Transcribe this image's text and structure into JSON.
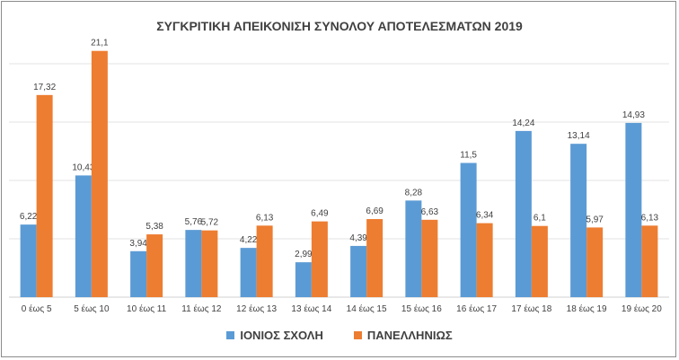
{
  "chart_data": {
    "type": "bar",
    "title": "ΣΥΓΚΡΙΤΙΚΗ ΑΠΕΙΚΟΝΙΣΗ ΣΥΝΟΛΟΥ ΑΠΟΤΕΛΕΣΜΑΤΩΝ 2019",
    "categories": [
      "0 έως 5",
      "5 έως 10",
      "10 έως 11",
      "11 έως 12",
      "12 έως 13",
      "13 έως 14",
      "14 έως 15",
      "15 έως 16",
      "16 έως 17",
      "17 έως 18",
      "18 έως 19",
      "19 έως 20"
    ],
    "series": [
      {
        "name": "ΙΟΝΙΟΣ ΣΧΟΛΗ",
        "color": "#5b9bd5",
        "values": [
          6.22,
          10.43,
          3.94,
          5.76,
          4.22,
          2.99,
          4.39,
          8.28,
          11.5,
          14.24,
          13.14,
          14.93
        ],
        "labels": [
          "6,22",
          "10,43",
          "3,94",
          "5,76",
          "4,22",
          "2,99",
          "4,39",
          "8,28",
          "11,5",
          "14,24",
          "13,14",
          "14,93"
        ]
      },
      {
        "name": "ΠΑΝΕΛΛΗΝΙΩΣ",
        "color": "#ed7d31",
        "values": [
          17.32,
          21.1,
          5.38,
          5.72,
          6.13,
          6.49,
          6.69,
          6.63,
          6.34,
          6.1,
          5.97,
          6.13
        ],
        "labels": [
          "17,32",
          "21,1",
          "5,38",
          "5,72",
          "6,13",
          "6,49",
          "6,69",
          "6,63",
          "6,34",
          "6,1",
          "5,97",
          "6,13"
        ]
      }
    ],
    "xlabel": "",
    "ylabel": "",
    "ylim": [
      0,
      25
    ],
    "grid": true,
    "legend_position": "bottom"
  }
}
